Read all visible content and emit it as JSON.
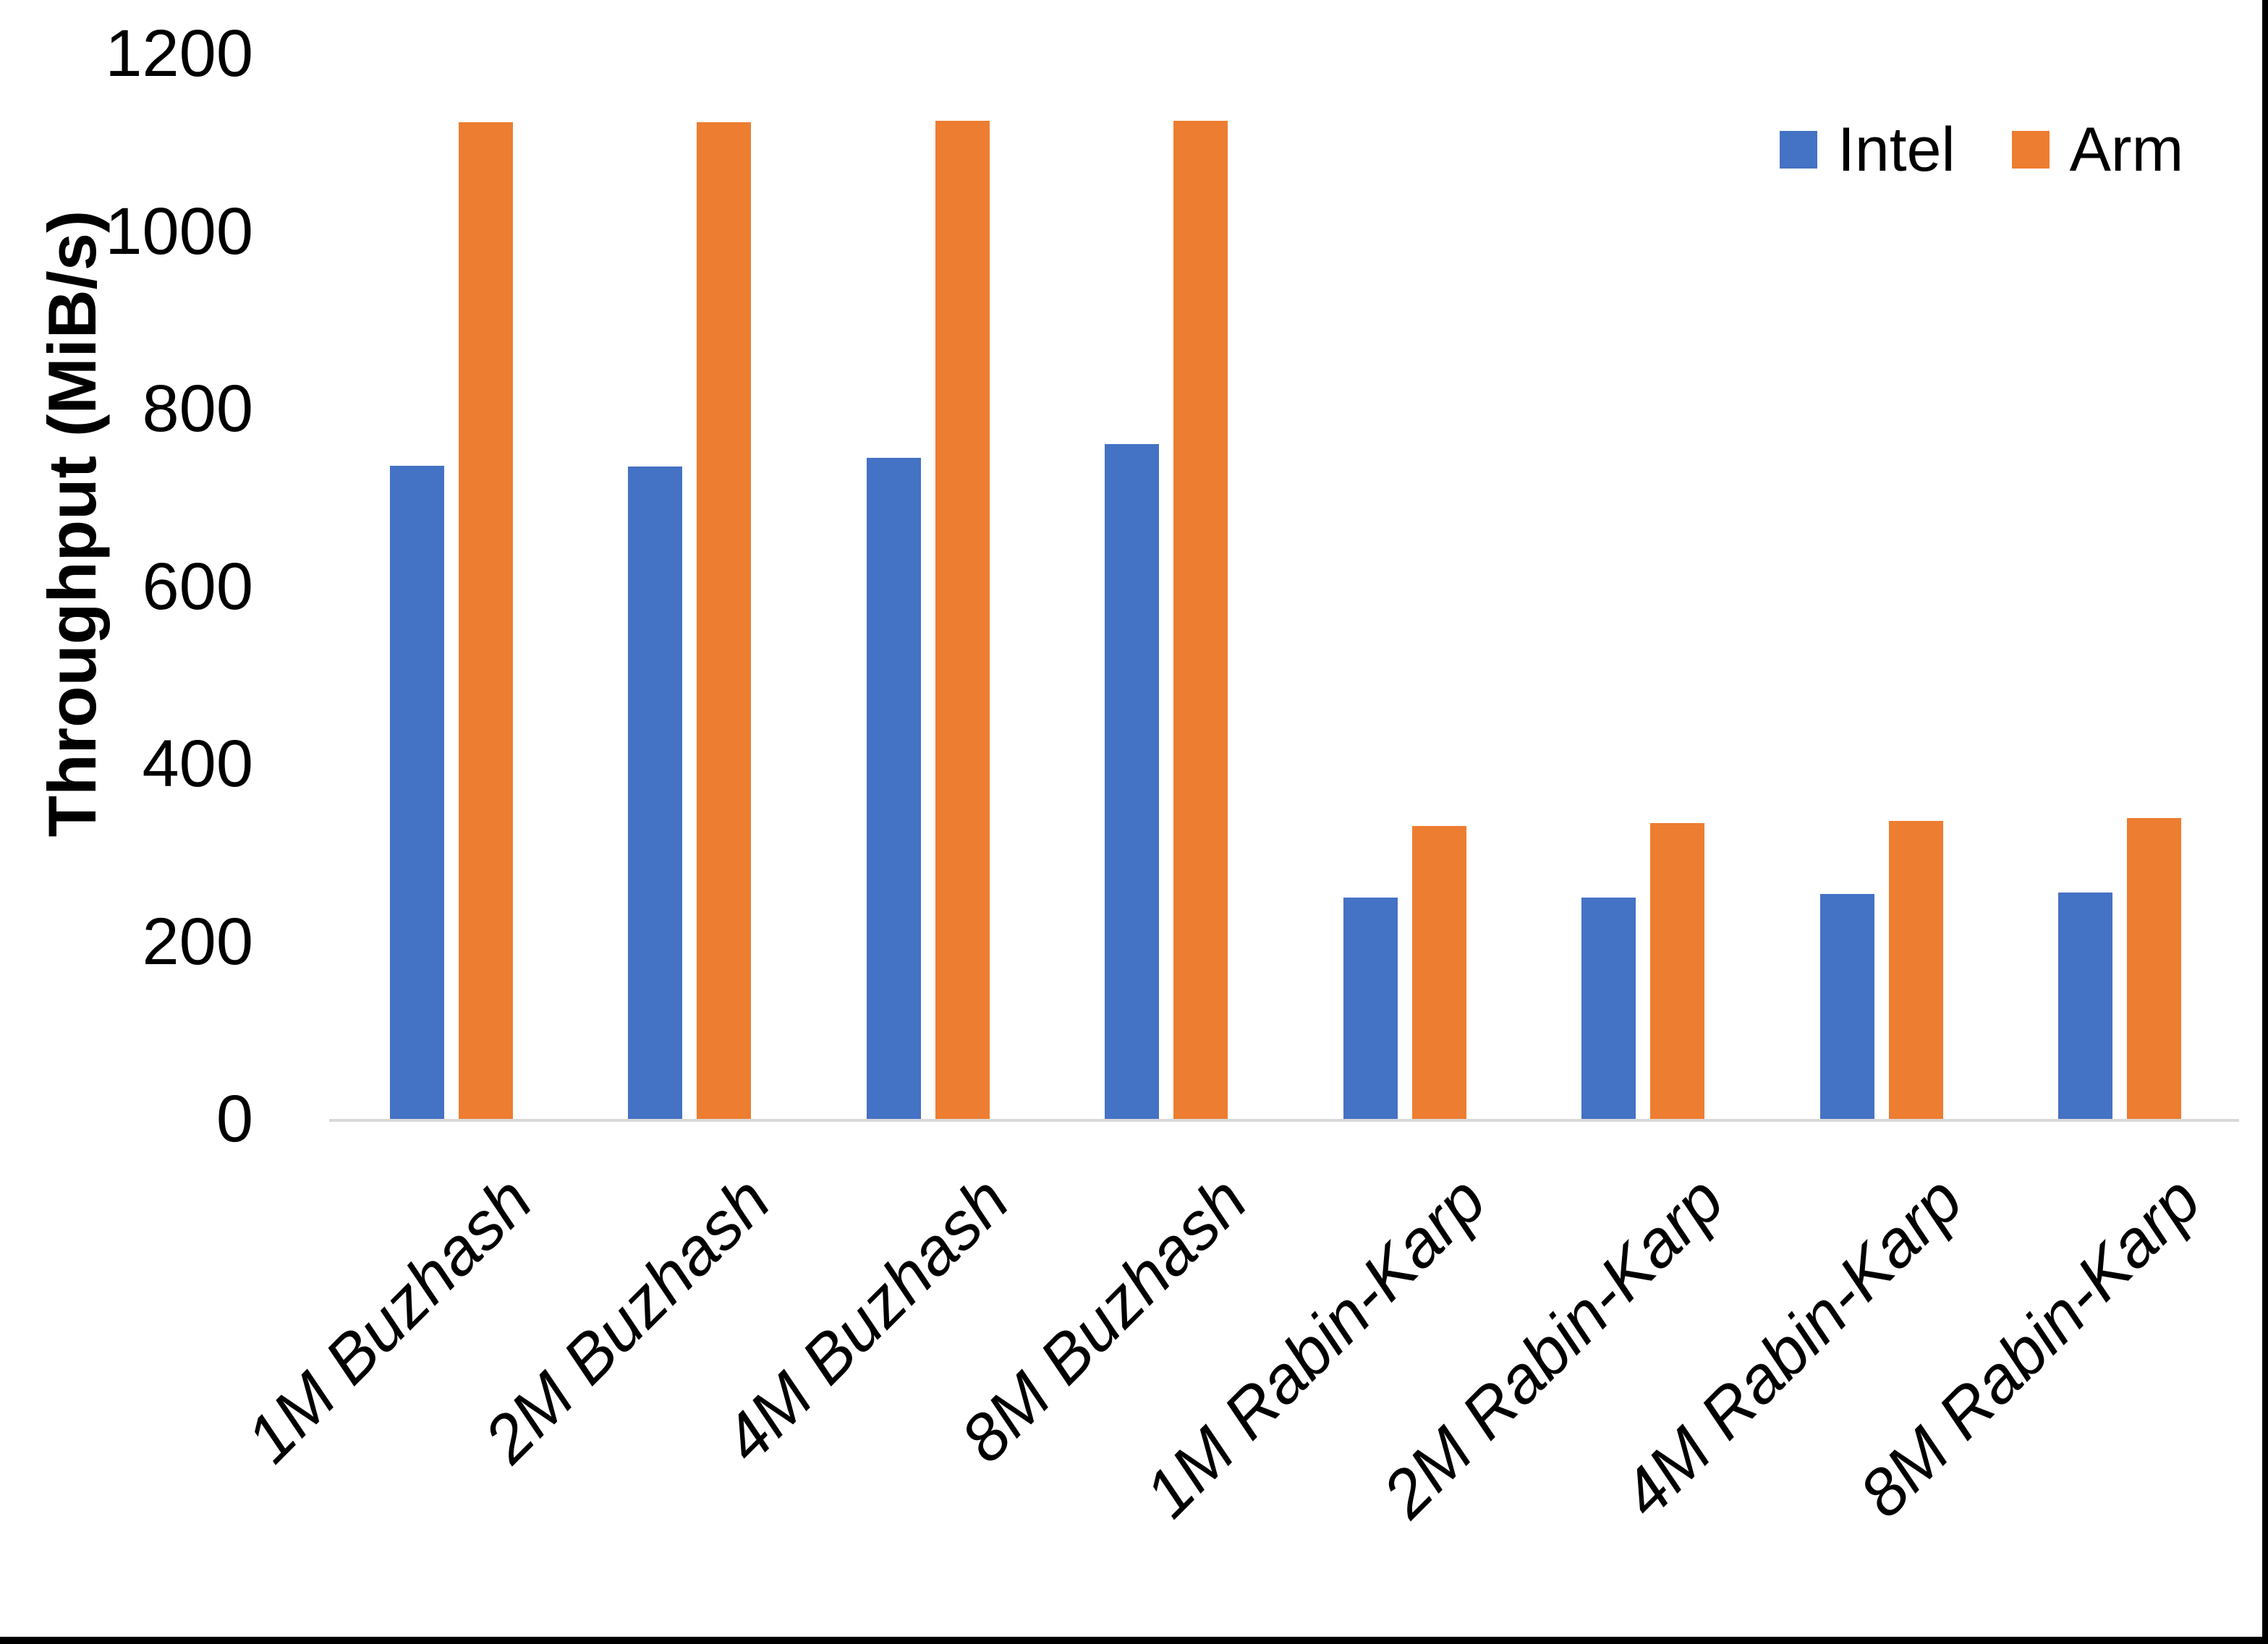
{
  "chart_data": {
    "type": "bar",
    "title": "",
    "xlabel": "",
    "ylabel": "Throughput (MiB/s)",
    "ylim": [
      0,
      1200
    ],
    "yticks": [
      0,
      200,
      400,
      600,
      800,
      1000,
      1200
    ],
    "grid": false,
    "legend_position": "top-right",
    "categories": [
      "1M Buzhash",
      "2M Buzhash",
      "4M Buzhash",
      "8M Buzhash",
      "1M Rabin-Karp",
      "2M Rabin-Karp",
      "4M Rabin-Karp",
      "8M Rabin-Karp"
    ],
    "series": [
      {
        "name": "Intel",
        "color": "#4472C4",
        "values": [
          736,
          735,
          745,
          760,
          249,
          249,
          253,
          255
        ]
      },
      {
        "name": "Arm",
        "color": "#ED7D31",
        "values": [
          1123,
          1123,
          1124,
          1124,
          330,
          333,
          336,
          339
        ]
      }
    ]
  },
  "legend": {
    "items": [
      {
        "label": "Intel",
        "color": "#4472C4"
      },
      {
        "label": "Arm",
        "color": "#ED7D31"
      }
    ]
  },
  "axis_colors": {
    "baseline": "#D9D9D9"
  }
}
